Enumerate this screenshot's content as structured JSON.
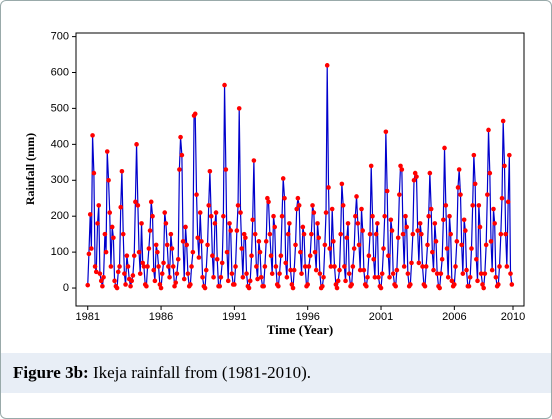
{
  "chart_data": {
    "type": "line",
    "xlabel": "Time (Year)",
    "ylabel": "Rainfall (mm)",
    "color": "#0000cc",
    "marker_color": "#ff0000",
    "xlim": [
      1980.2,
      2010.75
    ],
    "ylim": [
      -50,
      710
    ],
    "xticks": [
      1981,
      1986,
      1991,
      1996,
      2001,
      2006,
      2010
    ],
    "yticks": [
      0,
      100,
      200,
      300,
      400,
      500,
      600,
      700
    ],
    "x": [
      1981.0,
      1981.08,
      1981.17,
      1981.25,
      1981.33,
      1981.42,
      1981.5,
      1981.58,
      1981.67,
      1981.75,
      1981.83,
      1981.92,
      1982.0,
      1982.08,
      1982.17,
      1982.25,
      1982.33,
      1982.42,
      1982.5,
      1982.58,
      1982.67,
      1982.75,
      1982.83,
      1982.92,
      1983.0,
      1983.08,
      1983.17,
      1983.25,
      1983.33,
      1983.42,
      1983.5,
      1983.58,
      1983.67,
      1983.75,
      1983.83,
      1983.92,
      1984.0,
      1984.08,
      1984.17,
      1984.25,
      1984.33,
      1984.42,
      1984.5,
      1984.58,
      1984.67,
      1984.75,
      1984.83,
      1984.92,
      1985.0,
      1985.08,
      1985.17,
      1985.25,
      1985.33,
      1985.42,
      1985.5,
      1985.58,
      1985.67,
      1985.75,
      1985.83,
      1985.92,
      1986.0,
      1986.08,
      1986.17,
      1986.25,
      1986.33,
      1986.42,
      1986.5,
      1986.58,
      1986.67,
      1986.75,
      1986.83,
      1986.92,
      1987.0,
      1987.08,
      1987.17,
      1987.25,
      1987.33,
      1987.42,
      1987.5,
      1987.58,
      1987.67,
      1987.75,
      1987.83,
      1987.92,
      1988.0,
      1988.08,
      1988.17,
      1988.25,
      1988.33,
      1988.42,
      1988.5,
      1988.58,
      1988.67,
      1988.75,
      1988.83,
      1988.92,
      1989.0,
      1989.08,
      1989.17,
      1989.25,
      1989.33,
      1989.42,
      1989.5,
      1989.58,
      1989.67,
      1989.75,
      1989.83,
      1989.92,
      1990.0,
      1990.08,
      1990.17,
      1990.25,
      1990.33,
      1990.42,
      1990.5,
      1990.58,
      1990.67,
      1990.75,
      1990.83,
      1990.92,
      1991.0,
      1991.08,
      1991.17,
      1991.25,
      1991.33,
      1991.42,
      1991.5,
      1991.58,
      1991.67,
      1991.75,
      1991.83,
      1991.92,
      1992.0,
      1992.08,
      1992.17,
      1992.25,
      1992.33,
      1992.42,
      1992.5,
      1992.58,
      1992.67,
      1992.75,
      1992.83,
      1992.92,
      1993.0,
      1993.08,
      1993.17,
      1993.25,
      1993.33,
      1993.42,
      1993.5,
      1993.58,
      1993.67,
      1993.75,
      1993.83,
      1993.92,
      1994.0,
      1994.08,
      1994.17,
      1994.25,
      1994.33,
      1994.42,
      1994.5,
      1994.58,
      1994.67,
      1994.75,
      1994.83,
      1994.92,
      1995.0,
      1995.08,
      1995.17,
      1995.25,
      1995.33,
      1995.42,
      1995.5,
      1995.58,
      1995.67,
      1995.75,
      1995.83,
      1995.92,
      1996.0,
      1996.08,
      1996.17,
      1996.25,
      1996.33,
      1996.42,
      1996.5,
      1996.58,
      1996.67,
      1996.75,
      1996.83,
      1996.92,
      1997.0,
      1997.08,
      1997.17,
      1997.25,
      1997.33,
      1997.42,
      1997.5,
      1997.58,
      1997.67,
      1997.75,
      1997.83,
      1997.92,
      1998.0,
      1998.08,
      1998.17,
      1998.25,
      1998.33,
      1998.42,
      1998.5,
      1998.58,
      1998.67,
      1998.75,
      1998.83,
      1998.92,
      1999.0,
      1999.08,
      1999.17,
      1999.25,
      1999.33,
      1999.42,
      1999.5,
      1999.58,
      1999.67,
      1999.75,
      1999.83,
      1999.92,
      2000.0,
      2000.08,
      2000.17,
      2000.25,
      2000.33,
      2000.42,
      2000.5,
      2000.58,
      2000.67,
      2000.75,
      2000.83,
      2000.92,
      2001.0,
      2001.08,
      2001.17,
      2001.25,
      2001.33,
      2001.42,
      2001.5,
      2001.58,
      2001.67,
      2001.75,
      2001.83,
      2001.92,
      2002.0,
      2002.08,
      2002.17,
      2002.25,
      2002.33,
      2002.42,
      2002.5,
      2002.58,
      2002.67,
      2002.75,
      2002.83,
      2002.92,
      2003.0,
      2003.08,
      2003.17,
      2003.25,
      2003.33,
      2003.42,
      2003.5,
      2003.58,
      2003.67,
      2003.75,
      2003.83,
      2003.92,
      2004.0,
      2004.08,
      2004.17,
      2004.25,
      2004.33,
      2004.42,
      2004.5,
      2004.58,
      2004.67,
      2004.75,
      2004.83,
      2004.92,
      2005.0,
      2005.08,
      2005.17,
      2005.25,
      2005.33,
      2005.42,
      2005.5,
      2005.58,
      2005.67,
      2005.75,
      2005.83,
      2005.92,
      2006.0,
      2006.08,
      2006.17,
      2006.25,
      2006.33,
      2006.42,
      2006.5,
      2006.58,
      2006.67,
      2006.75,
      2006.83,
      2006.92,
      2007.0,
      2007.08,
      2007.17,
      2007.25,
      2007.33,
      2007.42,
      2007.5,
      2007.58,
      2007.67,
      2007.75,
      2007.83,
      2007.92,
      2008.0,
      2008.08,
      2008.17,
      2008.25,
      2008.33,
      2008.42,
      2008.5,
      2008.58,
      2008.67,
      2008.75,
      2008.83,
      2008.92,
      2009.0,
      2009.08,
      2009.17,
      2009.25,
      2009.33,
      2009.42,
      2009.5,
      2009.58,
      2009.67,
      2009.75,
      2009.83,
      2009.92
    ],
    "values": [
      8,
      95,
      205,
      110,
      425,
      320,
      60,
      45,
      180,
      230,
      40,
      20,
      5,
      30,
      150,
      100,
      380,
      300,
      210,
      60,
      170,
      140,
      20,
      5,
      0,
      45,
      60,
      225,
      325,
      150,
      40,
      10,
      90,
      60,
      25,
      5,
      20,
      35,
      90,
      240,
      400,
      230,
      100,
      40,
      180,
      70,
      60,
      10,
      5,
      60,
      110,
      160,
      240,
      200,
      50,
      20,
      120,
      100,
      60,
      10,
      0,
      40,
      70,
      210,
      180,
      120,
      60,
      30,
      150,
      110,
      60,
      5,
      15,
      40,
      80,
      330,
      420,
      370,
      130,
      25,
      170,
      120,
      40,
      5,
      10,
      60,
      100,
      480,
      485,
      260,
      140,
      85,
      210,
      130,
      30,
      5,
      0,
      50,
      120,
      230,
      325,
      200,
      90,
      30,
      180,
      210,
      80,
      5,
      5,
      30,
      70,
      200,
      565,
      330,
      100,
      20,
      180,
      160,
      40,
      10,
      10,
      60,
      160,
      230,
      500,
      210,
      110,
      30,
      150,
      140,
      40,
      5,
      0,
      20,
      90,
      190,
      355,
      150,
      60,
      25,
      130,
      100,
      30,
      5,
      5,
      60,
      130,
      250,
      240,
      150,
      90,
      40,
      200,
      170,
      60,
      10,
      5,
      40,
      90,
      200,
      305,
      250,
      70,
      30,
      150,
      180,
      50,
      10,
      0,
      50,
      120,
      220,
      250,
      230,
      100,
      40,
      170,
      150,
      60,
      5,
      10,
      60,
      90,
      150,
      230,
      210,
      100,
      50,
      180,
      140,
      40,
      0,
      5,
      30,
      120,
      210,
      620,
      280,
      110,
      60,
      220,
      130,
      60,
      10,
      0,
      20,
      50,
      150,
      290,
      230,
      60,
      20,
      140,
      180,
      40,
      5,
      10,
      60,
      110,
      200,
      255,
      180,
      120,
      50,
      220,
      160,
      50,
      10,
      5,
      30,
      90,
      150,
      340,
      200,
      80,
      30,
      150,
      180,
      30,
      5,
      0,
      40,
      110,
      200,
      435,
      270,
      90,
      30,
      190,
      160,
      40,
      10,
      5,
      50,
      140,
      260,
      340,
      330,
      150,
      60,
      200,
      170,
      40,
      5,
      10,
      70,
      150,
      300,
      320,
      310,
      160,
      70,
      180,
      150,
      60,
      10,
      5,
      60,
      120,
      200,
      320,
      220,
      100,
      50,
      180,
      130,
      40,
      5,
      0,
      40,
      80,
      190,
      390,
      230,
      110,
      30,
      200,
      150,
      20,
      5,
      10,
      60,
      130,
      280,
      330,
      260,
      120,
      40,
      190,
      160,
      50,
      5,
      5,
      30,
      110,
      230,
      370,
      290,
      80,
      20,
      230,
      170,
      40,
      10,
      0,
      40,
      120,
      260,
      440,
      320,
      130,
      50,
      220,
      180,
      30,
      5,
      10,
      60,
      150,
      250,
      465,
      340,
      150,
      60,
      240,
      370,
      40,
      10
    ]
  },
  "caption": {
    "label": "Figure 3b:",
    "text": "Ikeja rainfall from (1981-2010)."
  }
}
